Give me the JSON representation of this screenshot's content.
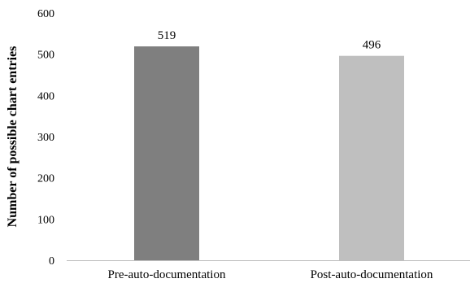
{
  "chart_data": {
    "type": "bar",
    "title": "",
    "xlabel": "",
    "ylabel": "Number of possible chart entries",
    "categories": [
      "Pre-auto-documentation",
      "Post-auto-documentation"
    ],
    "series": [
      {
        "values": [
          519,
          496
        ],
        "colors": [
          "#7f7f7f",
          "#bfbfbf"
        ]
      }
    ],
    "data_labels": [
      "519",
      "496"
    ],
    "y_ticks": [
      "0",
      "100",
      "200",
      "300",
      "400",
      "500",
      "600"
    ],
    "ylim": [
      0,
      600
    ],
    "grid": false,
    "legend": "none"
  }
}
